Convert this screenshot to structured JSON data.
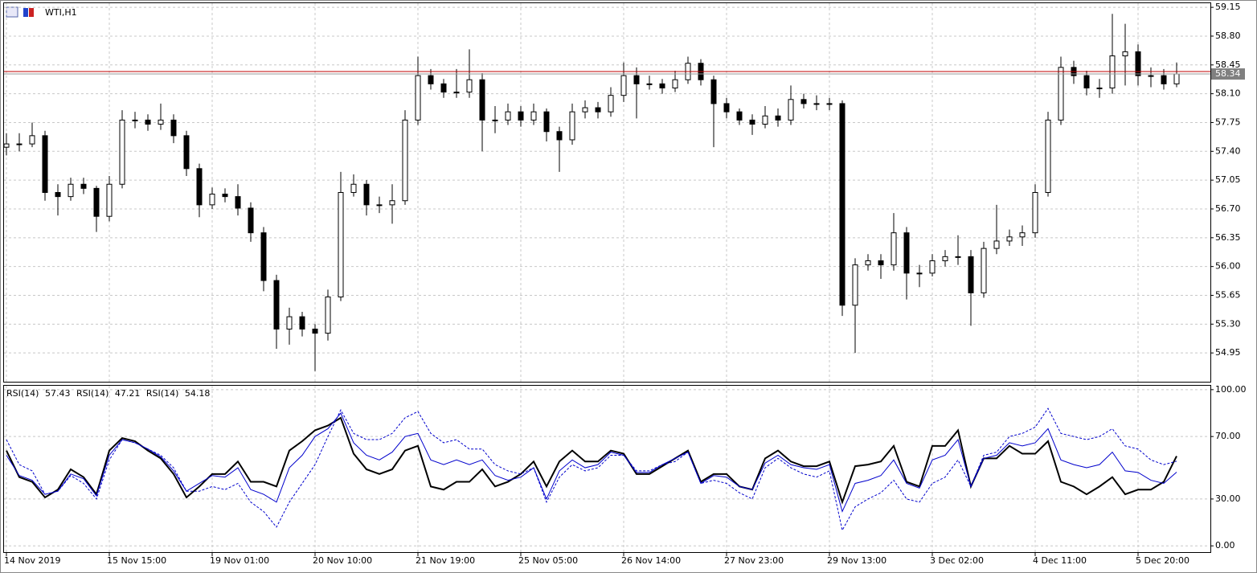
{
  "chart_data": {
    "type": "candlestick",
    "title": "WTI,H1",
    "categories": [
      "14 Nov 2019",
      null,
      null,
      null,
      null,
      null,
      null,
      null,
      "15 Nov 15:00",
      null,
      null,
      null,
      null,
      null,
      null,
      null,
      "19 Nov 01:00",
      null,
      null,
      null,
      null,
      null,
      null,
      null,
      "20 Nov 10:00",
      null,
      null,
      null,
      null,
      null,
      null,
      null,
      "21 Nov 19:00",
      null,
      null,
      null,
      null,
      null,
      null,
      null,
      "25 Nov 05:00",
      null,
      null,
      null,
      null,
      null,
      null,
      null,
      "26 Nov 14:00",
      null,
      null,
      null,
      null,
      null,
      null,
      null,
      "27 Nov 23:00",
      null,
      null,
      null,
      null,
      null,
      null,
      null,
      "29 Nov 13:00",
      null,
      null,
      null,
      null,
      null,
      null,
      null,
      "3 Dec 02:00",
      null,
      null,
      null,
      null,
      null,
      null,
      null,
      "4 Dec 11:00",
      null,
      null,
      null,
      null,
      null,
      null,
      null,
      "5 Dec 20:00",
      null,
      null,
      null
    ],
    "open": [
      57.45,
      57.49,
      57.49,
      57.59,
      56.9,
      56.85,
      57.0,
      56.95,
      56.61,
      57.0,
      57.78,
      57.78,
      57.73,
      57.78,
      57.59,
      57.19,
      56.75,
      56.88,
      56.85,
      56.71,
      56.41,
      55.83,
      55.24,
      55.39,
      55.24,
      55.19,
      55.63,
      56.9,
      57.0,
      56.75,
      56.75,
      56.8,
      57.78,
      58.32,
      58.22,
      58.12,
      58.12,
      58.27,
      57.78,
      57.78,
      57.88,
      57.78,
      57.88,
      57.64,
      57.54,
      57.88,
      57.93,
      57.88,
      58.08,
      58.32,
      58.22,
      58.22,
      58.17,
      58.27,
      58.47,
      58.27,
      57.98,
      57.88,
      57.78,
      57.73,
      57.83,
      57.78,
      58.03,
      57.98,
      57.98,
      57.98,
      55.53,
      56.02,
      56.07,
      56.02,
      56.41,
      55.92,
      55.92,
      56.07,
      56.12,
      56.12,
      55.68,
      56.22,
      56.31,
      56.36,
      56.41,
      56.9,
      57.78,
      58.42,
      58.32,
      58.17,
      58.17,
      58.56,
      58.61,
      58.32,
      58.32,
      58.22
    ],
    "high": [
      57.62,
      57.62,
      57.75,
      57.65,
      57.0,
      57.08,
      57.08,
      56.98,
      57.1,
      57.9,
      57.88,
      57.85,
      57.98,
      57.85,
      57.65,
      57.25,
      56.96,
      56.95,
      57.0,
      56.78,
      56.48,
      55.9,
      55.5,
      55.45,
      55.3,
      55.72,
      57.15,
      57.12,
      57.05,
      56.85,
      57.0,
      57.9,
      58.55,
      58.4,
      58.28,
      58.4,
      58.64,
      58.35,
      57.95,
      57.98,
      57.95,
      57.98,
      57.92,
      57.7,
      57.98,
      58.02,
      58.0,
      58.18,
      58.48,
      58.42,
      58.32,
      58.28,
      58.38,
      58.55,
      58.52,
      58.32,
      58.05,
      57.92,
      57.85,
      57.95,
      57.92,
      58.2,
      58.1,
      58.08,
      58.05,
      58.02,
      56.1,
      56.15,
      56.15,
      56.65,
      56.48,
      56.02,
      56.15,
      56.2,
      56.38,
      56.2,
      56.3,
      56.75,
      56.45,
      56.5,
      57.0,
      57.88,
      58.55,
      58.5,
      58.38,
      58.28,
      59.07,
      58.95,
      58.7,
      58.42,
      58.4,
      58.48
    ],
    "low": [
      57.35,
      57.4,
      57.45,
      56.8,
      56.62,
      56.8,
      56.88,
      56.42,
      56.55,
      56.95,
      57.68,
      57.65,
      57.66,
      57.5,
      57.1,
      56.6,
      56.7,
      56.78,
      56.62,
      56.3,
      55.7,
      55.0,
      55.05,
      55.15,
      54.73,
      55.1,
      55.58,
      56.85,
      56.62,
      56.65,
      56.52,
      56.75,
      57.72,
      58.15,
      58.05,
      58.05,
      58.05,
      57.4,
      57.62,
      57.72,
      57.7,
      57.72,
      57.52,
      57.15,
      57.48,
      57.8,
      57.8,
      57.82,
      58.0,
      57.8,
      58.15,
      58.1,
      58.12,
      58.22,
      58.2,
      57.45,
      57.8,
      57.72,
      57.6,
      57.68,
      57.7,
      57.72,
      57.92,
      57.9,
      57.9,
      55.4,
      54.95,
      55.95,
      55.85,
      55.95,
      55.6,
      55.75,
      55.88,
      56.0,
      56.02,
      55.28,
      55.62,
      56.15,
      56.25,
      56.25,
      56.35,
      56.85,
      57.72,
      58.22,
      58.08,
      58.05,
      58.1,
      58.2,
      58.2,
      58.18,
      58.15,
      58.18
    ],
    "close": [
      57.49,
      57.49,
      57.59,
      56.9,
      56.85,
      57.0,
      56.95,
      56.61,
      57.0,
      57.78,
      57.78,
      57.73,
      57.78,
      57.59,
      57.19,
      56.75,
      56.88,
      56.85,
      56.71,
      56.41,
      55.83,
      55.24,
      55.39,
      55.24,
      55.19,
      55.63,
      56.9,
      57.0,
      56.75,
      56.75,
      56.8,
      57.78,
      58.32,
      58.22,
      58.12,
      58.12,
      58.27,
      57.78,
      57.78,
      57.88,
      57.78,
      57.88,
      57.64,
      57.54,
      57.88,
      57.93,
      57.88,
      58.08,
      58.32,
      58.22,
      58.22,
      58.17,
      58.27,
      58.47,
      58.27,
      57.98,
      57.88,
      57.78,
      57.73,
      57.83,
      57.78,
      58.03,
      57.98,
      57.98,
      57.98,
      55.53,
      56.02,
      56.07,
      56.02,
      56.41,
      55.92,
      55.92,
      56.07,
      56.12,
      56.12,
      55.68,
      56.22,
      56.31,
      56.36,
      56.41,
      56.9,
      57.78,
      58.42,
      58.32,
      58.17,
      58.17,
      58.56,
      58.61,
      58.32,
      58.32,
      58.22,
      58.34
    ],
    "color": "#000000",
    "ylim": [
      54.6,
      59.2
    ],
    "yticks": [
      54.95,
      {
        "value": 55.3,
        "label": "55.30"
      },
      55.65,
      {
        "value": 56,
        "label": "56.00"
      },
      56.35,
      {
        "value": 56.7,
        "label": "56.70"
      },
      57.05,
      {
        "value": 57.4,
        "label": "57.40"
      },
      57.75,
      {
        "value": 58.1,
        "label": "58.10"
      },
      58.45,
      {
        "value": 58.8,
        "label": "58.80"
      },
      59.15
    ],
    "grid": true,
    "current_price": 58.34,
    "current_price_color": "#c00000",
    "rsi": {
      "type": "line",
      "ylim": [
        -4,
        102.5
      ],
      "yticks": [
        {
          "value": 0,
          "label": "0.00"
        },
        {
          "value": 30,
          "label": "30.00"
        },
        {
          "value": 70,
          "label": "70.00"
        },
        {
          "value": 100,
          "label": "100.00"
        }
      ],
      "series": [
        {
          "name": "RSI(14)",
          "color": "#000000",
          "width": 2,
          "dashed": false,
          "values": [
            61,
            44,
            41,
            31,
            36,
            49,
            44,
            33,
            61,
            69,
            67,
            61,
            56,
            46,
            31,
            38,
            46,
            46,
            54,
            41,
            41,
            38,
            61,
            67,
            74,
            77,
            82,
            59,
            49,
            46,
            49,
            61,
            64,
            38,
            36,
            41,
            41,
            49,
            38,
            41,
            46,
            54,
            38,
            54,
            61,
            54,
            54,
            61,
            59,
            46,
            46,
            51,
            56,
            61,
            41,
            46,
            46,
            38,
            36,
            56,
            61,
            54,
            51,
            51,
            54,
            28,
            51,
            52,
            54,
            64,
            41,
            38,
            64,
            64,
            74,
            38,
            56,
            56,
            64,
            59,
            59,
            67,
            41,
            38,
            33,
            38,
            44,
            33,
            36,
            36,
            41,
            57.43
          ]
        },
        {
          "name": "RSI(14)",
          "color": "#0000cc",
          "width": 1,
          "dashed": false,
          "values": [
            58,
            45,
            42,
            33,
            35,
            46,
            43,
            32,
            58,
            68,
            66,
            62,
            57,
            48,
            35,
            40,
            45,
            44,
            50,
            36,
            33,
            28,
            50,
            58,
            70,
            75,
            85,
            66,
            58,
            55,
            60,
            70,
            72,
            55,
            52,
            55,
            52,
            55,
            45,
            42,
            44,
            50,
            30,
            48,
            55,
            50,
            52,
            60,
            58,
            47,
            47,
            52,
            56,
            60,
            40,
            45,
            44,
            38,
            36,
            53,
            58,
            52,
            50,
            49,
            52,
            22,
            40,
            42,
            45,
            55,
            40,
            37,
            55,
            58,
            68,
            38,
            56,
            58,
            66,
            64,
            66,
            75,
            55,
            52,
            50,
            52,
            60,
            48,
            47,
            42,
            40,
            47.21
          ]
        },
        {
          "name": "RSI(14)",
          "color": "#0000cc",
          "width": 1,
          "dashed": true,
          "values": [
            68,
            52,
            48,
            33,
            35,
            45,
            40,
            30,
            55,
            68,
            66,
            62,
            58,
            50,
            35,
            35,
            38,
            36,
            40,
            28,
            22,
            12,
            28,
            40,
            52,
            70,
            87,
            72,
            68,
            68,
            72,
            82,
            86,
            72,
            66,
            68,
            62,
            62,
            52,
            48,
            46,
            50,
            28,
            44,
            52,
            48,
            50,
            58,
            58,
            48,
            48,
            52,
            54,
            60,
            40,
            42,
            40,
            34,
            30,
            50,
            56,
            50,
            46,
            44,
            48,
            10,
            25,
            30,
            34,
            42,
            30,
            28,
            40,
            44,
            55,
            38,
            58,
            60,
            70,
            72,
            76,
            88,
            72,
            70,
            68,
            70,
            75,
            64,
            62,
            55,
            52,
            54.18
          ]
        }
      ]
    }
  }
}
